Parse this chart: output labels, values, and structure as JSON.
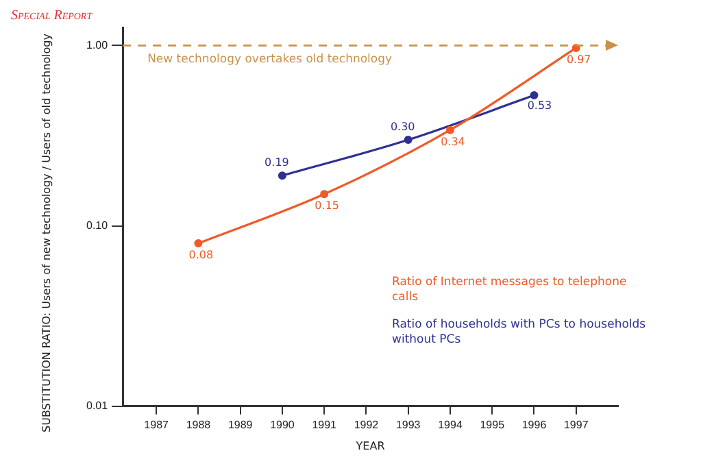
{
  "chart_data": {
    "type": "line",
    "title": "Special Report",
    "xlabel": "YEAR",
    "ylabel": "SUBSTITUTION RATIO: Users of new technology / Users of old technology",
    "series": [
      {
        "name": "Ratio of Internet messages to telephone calls",
        "color": "#f05a28",
        "x": [
          1988,
          1991,
          1994,
          1997
        ],
        "values": [
          0.08,
          0.15,
          0.34,
          0.97
        ],
        "value_labels": [
          "0.08",
          "0.15",
          "0.34",
          "0.97"
        ]
      },
      {
        "name": "Ratio of households with PCs to households without PCs",
        "color": "#2e3192",
        "x": [
          1990,
          1993,
          1996
        ],
        "values": [
          0.19,
          0.3,
          0.53
        ],
        "value_labels": [
          "0.19",
          "0.30",
          "0.53"
        ]
      }
    ],
    "xlim": [
      1986.2,
      1998
    ],
    "xticks": [
      1987,
      1988,
      1989,
      1990,
      1991,
      1992,
      1993,
      1994,
      1995,
      1996,
      1997
    ],
    "ylim": [
      0.01,
      1.26
    ],
    "yticks": [
      {
        "value": 0.01,
        "label": "0.01"
      },
      {
        "value": 0.1,
        "label": "0.10"
      },
      {
        "value": 1,
        "label": "1.00"
      }
    ],
    "log": "y",
    "grid": false,
    "legend": "right",
    "marker": "circle",
    "line_style": "solid",
    "ref_lines": [
      {
        "axis": "y",
        "value": 1,
        "label": "New technology overtakes old technology",
        "color": "#c8924a",
        "line_style": "dashed"
      }
    ]
  }
}
